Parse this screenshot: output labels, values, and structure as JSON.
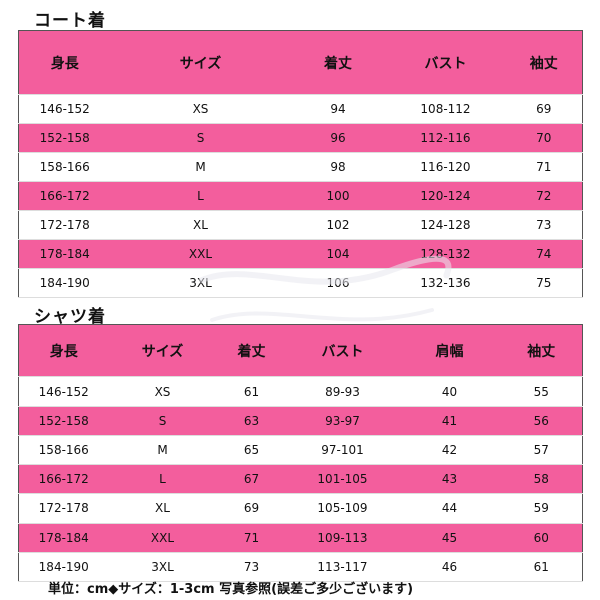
{
  "coat": {
    "title": "コート着",
    "headers": [
      "身長",
      "サイズ",
      "着丈",
      "バスト",
      "袖丈"
    ],
    "rows": [
      [
        "146-152",
        "XS",
        "94",
        "108-112",
        "69"
      ],
      [
        "152-158",
        "S",
        "96",
        "112-116",
        "70"
      ],
      [
        "158-166",
        "M",
        "98",
        "116-120",
        "71"
      ],
      [
        "166-172",
        "L",
        "100",
        "120-124",
        "72"
      ],
      [
        "172-178",
        "XL",
        "102",
        "124-128",
        "73"
      ],
      [
        "178-184",
        "XXL",
        "104",
        "128-132",
        "74"
      ],
      [
        "184-190",
        "3XL",
        "106",
        "132-136",
        "75"
      ]
    ]
  },
  "shirt": {
    "title": "シャツ着",
    "headers": [
      "身長",
      "サイズ",
      "着丈",
      "バスト",
      "肩幅",
      "袖丈"
    ],
    "rows": [
      [
        "146-152",
        "XS",
        "61",
        "89-93",
        "40",
        "55"
      ],
      [
        "152-158",
        "S",
        "63",
        "93-97",
        "41",
        "56"
      ],
      [
        "158-166",
        "M",
        "65",
        "97-101",
        "42",
        "57"
      ],
      [
        "166-172",
        "L",
        "67",
        "101-105",
        "43",
        "58"
      ],
      [
        "172-178",
        "XL",
        "69",
        "105-109",
        "44",
        "59"
      ],
      [
        "178-184",
        "XXL",
        "71",
        "109-113",
        "45",
        "60"
      ],
      [
        "184-190",
        "3XL",
        "73",
        "113-117",
        "46",
        "61"
      ]
    ]
  },
  "footer_note": "単位：cm◆サイズ：1-3cm 写真参照(誤差ご多少ございます)",
  "colors": {
    "pink_row": "#f35e9d",
    "white_row": "#ffffff",
    "text": "#111111"
  }
}
